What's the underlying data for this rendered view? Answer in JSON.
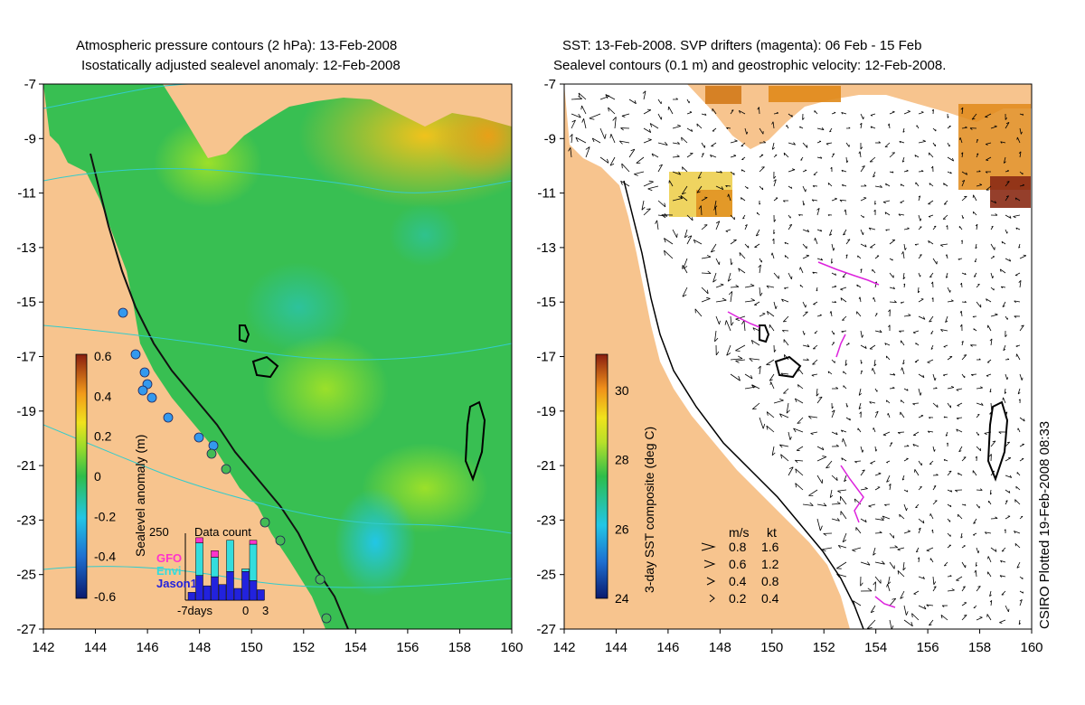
{
  "left_panel": {
    "title_line1": "Atmospheric pressure contours (2 hPa): 13-Feb-2008",
    "title_line2": "Isostatically adjusted sealevel anomaly: 12-Feb-2008",
    "lat_ticks": [
      "-7",
      "-9",
      "-11",
      "-13",
      "-15",
      "-17",
      "-19",
      "-21",
      "-23",
      "-25",
      "-27"
    ],
    "lon_ticks": [
      "142",
      "144",
      "146",
      "148",
      "150",
      "152",
      "154",
      "156",
      "158",
      "160"
    ],
    "colorbar": {
      "label": "Sealevel anomaly (m)",
      "ticks": [
        "0.6",
        "0.4",
        "0.2",
        "0",
        "-0.2",
        "-0.4",
        "-0.6"
      ],
      "range": [
        -0.6,
        0.6
      ]
    },
    "data_count": {
      "title": "Data count",
      "ymax_label": "250",
      "legend": [
        {
          "name": "GFO",
          "color": "#ff33cc"
        },
        {
          "name": "Envi",
          "color": "#33dddd"
        },
        {
          "name": "Jason1",
          "color": "#2222dd"
        }
      ],
      "x_labels": [
        "-7days",
        "0",
        "3"
      ],
      "days": [
        {
          "day": -7,
          "jason": 30,
          "envi": 0,
          "gfo": 0
        },
        {
          "day": -6,
          "jason": 95,
          "envi": 125,
          "gfo": 20
        },
        {
          "day": -5,
          "jason": 55,
          "envi": 0,
          "gfo": 0
        },
        {
          "day": -4,
          "jason": 90,
          "envi": 75,
          "gfo": 25
        },
        {
          "day": -3,
          "jason": 60,
          "envi": 0,
          "gfo": 0
        },
        {
          "day": -2,
          "jason": 110,
          "envi": 120,
          "gfo": 0
        },
        {
          "day": -1,
          "jason": 45,
          "envi": 0,
          "gfo": 0
        },
        {
          "day": 0,
          "jason": 110,
          "envi": 10,
          "gfo": 0
        },
        {
          "day": 1,
          "jason": 75,
          "envi": 140,
          "gfo": 15
        },
        {
          "day": 2,
          "jason": 40,
          "envi": 0,
          "gfo": 0
        }
      ]
    }
  },
  "right_panel": {
    "title_line1": "SST: 13-Feb-2008. SVP drifters (magenta): 06 Feb - 15 Feb",
    "title_line2": "Sealevel contours (0.1 m) and geostrophic velocity: 12-Feb-2008.",
    "lat_ticks": [
      "-7",
      "-9",
      "-11",
      "-13",
      "-15",
      "-17",
      "-19",
      "-21",
      "-23",
      "-25",
      "-27"
    ],
    "lon_ticks": [
      "142",
      "144",
      "146",
      "148",
      "150",
      "152",
      "154",
      "156",
      "158",
      "160"
    ],
    "colorbar": {
      "label": "3-day SST composite (deg C)",
      "ticks": [
        "30",
        "28",
        "26",
        "24"
      ],
      "range": [
        24,
        31
      ]
    },
    "velocity_legend": {
      "header_ms": "m/s",
      "header_kt": "kt",
      "rows": [
        {
          "ms": "0.8",
          "kt": "1.6"
        },
        {
          "ms": "0.6",
          "kt": "1.2"
        },
        {
          "ms": "0.4",
          "kt": "0.8"
        },
        {
          "ms": "0.2",
          "kt": "0.4"
        }
      ]
    },
    "credit": "CSIRO Plotted 19-Feb-2008 08:33"
  },
  "colors": {
    "land": "#f7c48e",
    "contour": "#33cccc",
    "drifter": "#dd22dd",
    "track_dot": "#3399ee"
  }
}
